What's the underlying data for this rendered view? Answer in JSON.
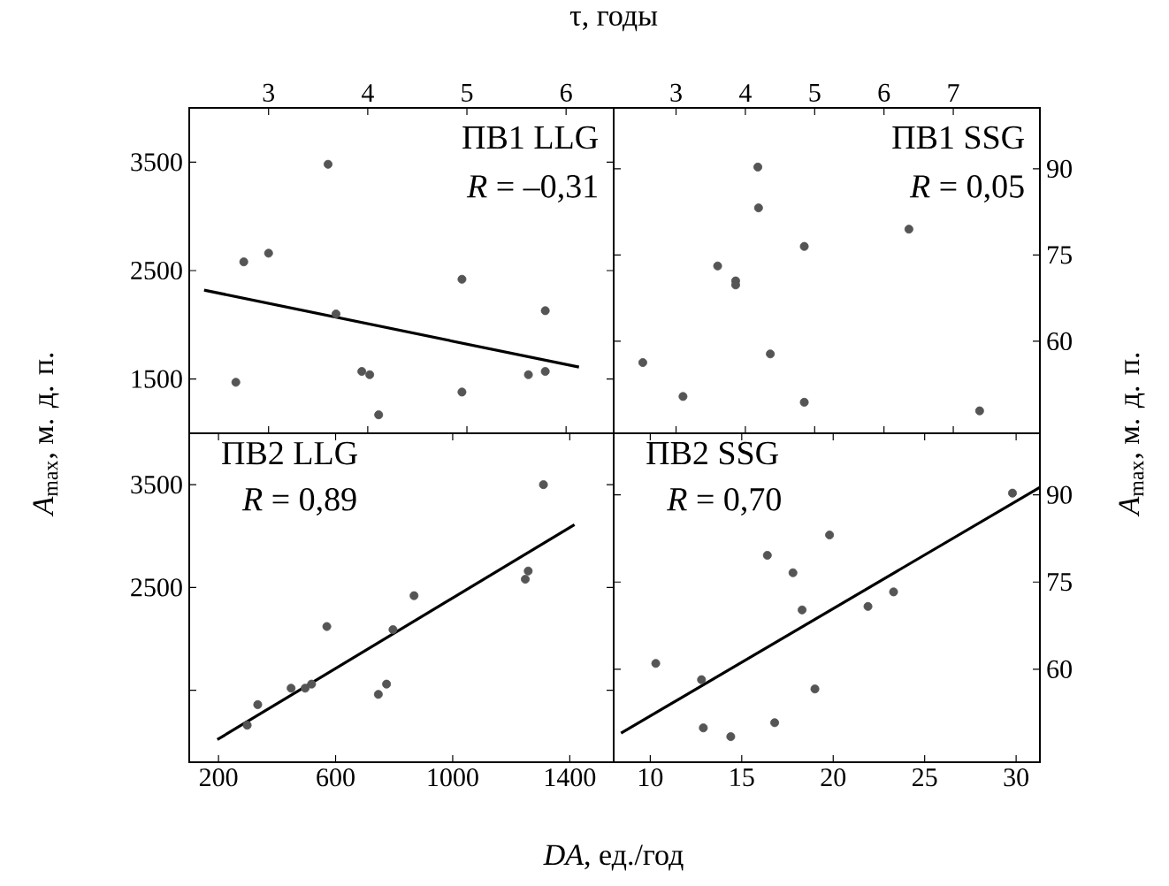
{
  "chart_data": [
    {
      "type": "scatter",
      "xlabel": "τ, годы",
      "ylabel": "*A*$_{max}$, м. д. п.",
      "xlim": [
        2.2,
        6.48
      ],
      "xticks": [
        3,
        4,
        5,
        6
      ],
      "ylim": [
        1000,
        4000
      ],
      "yticks": [
        1500,
        2500,
        3500
      ],
      "annotations": [
        "ПВ1 LLG",
        "*R* = –0,31"
      ],
      "series": [
        {
          "marker": "circle",
          "color": "#555555",
          "x": [
            2.67,
            2.75,
            3.0,
            3.6,
            3.68,
            3.94,
            4.02,
            4.11,
            4.95,
            4.95,
            5.62,
            5.79,
            5.79
          ],
          "values": [
            1470,
            2580,
            2660,
            3480,
            2100,
            1570,
            1540,
            1170,
            2420,
            1380,
            1540,
            2130,
            1570
          ]
        },
        {
          "type": "line",
          "marker": "none",
          "line_style": "solid",
          "color": "#000000",
          "x": [
            2.35,
            6.13
          ],
          "values": [
            2320,
            1610
          ]
        }
      ]
    },
    {
      "type": "scatter",
      "ylabel": "*A*$_{max}$, м. д. п.",
      "xlim": [
        2.1,
        8.25
      ],
      "xticks": [
        3,
        4,
        5,
        6,
        7
      ],
      "ylim": [
        44,
        100.6
      ],
      "yticks": [
        60,
        75,
        90
      ],
      "annotations": [
        "ПВ1 SSG",
        "*R* = 0,05"
      ],
      "series": [
        {
          "marker": "circle",
          "color": "#555555",
          "x": [
            2.52,
            3.1,
            3.6,
            3.86,
            3.86,
            4.18,
            4.19,
            4.36,
            4.85,
            4.85,
            6.36,
            7.38
          ],
          "values": [
            56.3,
            50.4,
            73.1,
            70.5,
            69.8,
            90.3,
            83.2,
            57.8,
            76.5,
            49.4,
            79.5,
            47.9
          ]
        }
      ]
    },
    {
      "type": "scatter",
      "xlabel": "*DA*, ед./год",
      "xlim": [
        100,
        1550
      ],
      "xticks": [
        200,
        600,
        1000,
        1400
      ],
      "ylim": [
        800,
        4000
      ],
      "yticks": [
        {
          "value": 1500,
          "label": null
        },
        2500,
        3500
      ],
      "annotations": [
        "ПВ2 LLG",
        "*R* = 0,89"
      ],
      "series": [
        {
          "marker": "circle",
          "color": "#555555",
          "x": [
            298,
            334,
            448,
            496,
            518,
            570,
            746,
            774,
            796,
            868,
            1248,
            1258,
            1310
          ],
          "values": [
            1160,
            1360,
            1520,
            1520,
            1560,
            2120,
            1460,
            1560,
            2090,
            2420,
            2580,
            2660,
            3500
          ]
        },
        {
          "type": "line",
          "marker": "none",
          "line_style": "solid",
          "color": "#000000",
          "x": [
            196,
            1416
          ],
          "values": [
            1020,
            3110
          ]
        }
      ]
    },
    {
      "type": "scatter",
      "xlim": [
        8,
        31.3
      ],
      "xticks": [
        10,
        15,
        20,
        25,
        30
      ],
      "ylim": [
        44,
        100.6
      ],
      "yticks": [
        60,
        75,
        90
      ],
      "annotations": [
        "ПВ2 SSG",
        "*R* = 0,70"
      ],
      "series": [
        {
          "marker": "circle",
          "color": "#555555",
          "x": [
            10.3,
            12.8,
            12.9,
            14.4,
            16.4,
            16.8,
            17.8,
            18.3,
            19.0,
            19.8,
            21.9,
            23.3,
            29.8
          ],
          "values": [
            61.0,
            58.2,
            49.9,
            48.4,
            79.6,
            50.8,
            76.6,
            70.2,
            56.6,
            83.1,
            70.8,
            73.3,
            90.3
          ]
        },
        {
          "type": "line",
          "marker": "none",
          "line_style": "solid",
          "color": "#000000",
          "x": [
            8.4,
            31.3
          ],
          "values": [
            49.0,
            91.3
          ]
        }
      ]
    }
  ]
}
